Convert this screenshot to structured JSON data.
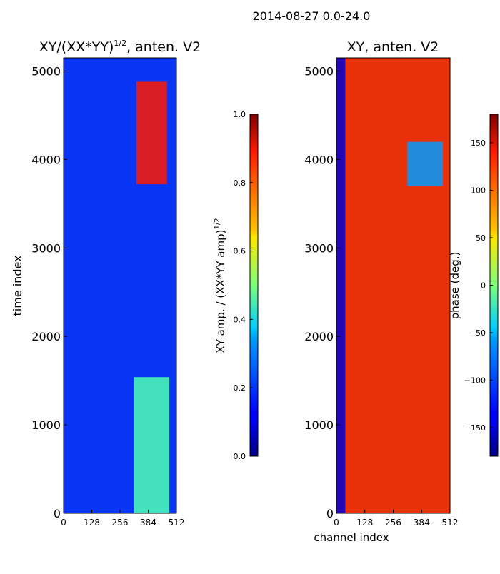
{
  "figure_title": "2014-08-27 0.0-24.0",
  "chart_data": [
    {
      "type": "heatmap",
      "title_main": "XY/(XX*YY)",
      "title_sup": "1/2",
      "title_suffix": ", anten. V2",
      "xlabel": "",
      "ylabel": "time index",
      "xlim": [
        0,
        512
      ],
      "ylim": [
        0,
        5150
      ],
      "xticks": [
        0,
        128,
        256,
        384,
        512
      ],
      "yticks": [
        0,
        1000,
        2000,
        3000,
        4000,
        5000
      ],
      "colorbar": {
        "label_main": "XY amp. / (XX*YY amp)",
        "label_sup": "1/2",
        "range": [
          0.0,
          1.0
        ],
        "ticks": [
          "0.0",
          "0.2",
          "0.4",
          "0.6",
          "0.8",
          "1.0"
        ],
        "tick_values": [
          0.0,
          0.2,
          0.4,
          0.6,
          0.8,
          1.0
        ]
      },
      "background_value": 0.18,
      "features": [
        {
          "name": "band-high",
          "x": [
            330,
            470
          ],
          "y": [
            3720,
            4880
          ],
          "value": 0.85
        },
        {
          "name": "band-mid",
          "x": [
            320,
            480
          ],
          "y": [
            0,
            1540
          ],
          "value": 0.45
        }
      ]
    },
    {
      "type": "heatmap",
      "title_main": "XY, anten. V2",
      "xlabel": "channel index",
      "ylabel": "",
      "xlim": [
        0,
        512
      ],
      "ylim": [
        0,
        5150
      ],
      "xticks": [
        0,
        128,
        256,
        384,
        512
      ],
      "yticks": [
        0,
        1000,
        2000,
        3000,
        4000,
        5000
      ],
      "colorbar": {
        "label_main": "phase (deg.)",
        "range": [
          -180,
          180
        ],
        "ticks": [
          "150",
          "100",
          "50",
          "0",
          "−50",
          "−100",
          "−150"
        ],
        "tick_values": [
          150,
          100,
          50,
          0,
          -50,
          -100,
          -150
        ]
      },
      "background_value": 140,
      "features": [
        {
          "name": "phase-low-left",
          "x": [
            0,
            40
          ],
          "y": [
            0,
            5150
          ],
          "value": -150
        },
        {
          "name": "phase-cyan-top",
          "x": [
            320,
            480
          ],
          "y": [
            3700,
            4200
          ],
          "value": -80
        }
      ]
    }
  ]
}
